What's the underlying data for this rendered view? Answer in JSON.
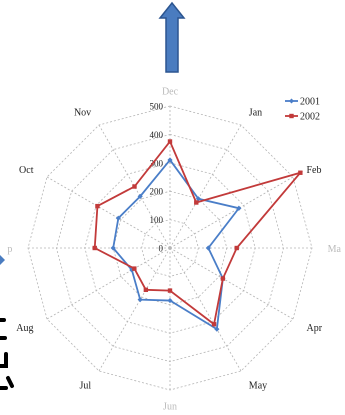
{
  "colors": {
    "arrow_fill": "#4a7cc0",
    "arrow_stroke": "#2c5590",
    "grid": "#b5b5b5",
    "series_2001": "#4a7ec8",
    "series_2002": "#c23a3a",
    "label": "#222222",
    "label_faded": "#bbbbbb",
    "stroke_art": "#000000",
    "dot_blue": "#4a7cc0"
  },
  "icons": {
    "up_arrow": "up-arrow-icon"
  },
  "chart_data": {
    "type": "radar",
    "title": "",
    "categories": [
      "Dec",
      "Jan",
      "Feb",
      "Mar",
      "Apr",
      "May",
      "Jun",
      "Jul",
      "Aug",
      "Sep",
      "Oct",
      "Nov"
    ],
    "visible_category_labels": [
      "Dec",
      "Jan",
      "Feb",
      "Ma",
      "Apr",
      "May",
      "Jun",
      "Jul",
      "Aug",
      "p",
      "Oct",
      "Nov"
    ],
    "faded_category_labels": [
      "Dec",
      "Ma",
      "Jun",
      "p"
    ],
    "radial_ticks": [
      0,
      100,
      200,
      300,
      400,
      500
    ],
    "radial_range": [
      0,
      500
    ],
    "grid": true,
    "legend_position": "top-right",
    "series": [
      {
        "name": "2001",
        "values": [
          310,
          200,
          280,
          135,
          215,
          330,
          185,
          210,
          155,
          200,
          210,
          210
        ]
      },
      {
        "name": "2002",
        "values": [
          375,
          185,
          530,
          235,
          215,
          310,
          150,
          170,
          145,
          265,
          295,
          250
        ]
      }
    ]
  }
}
